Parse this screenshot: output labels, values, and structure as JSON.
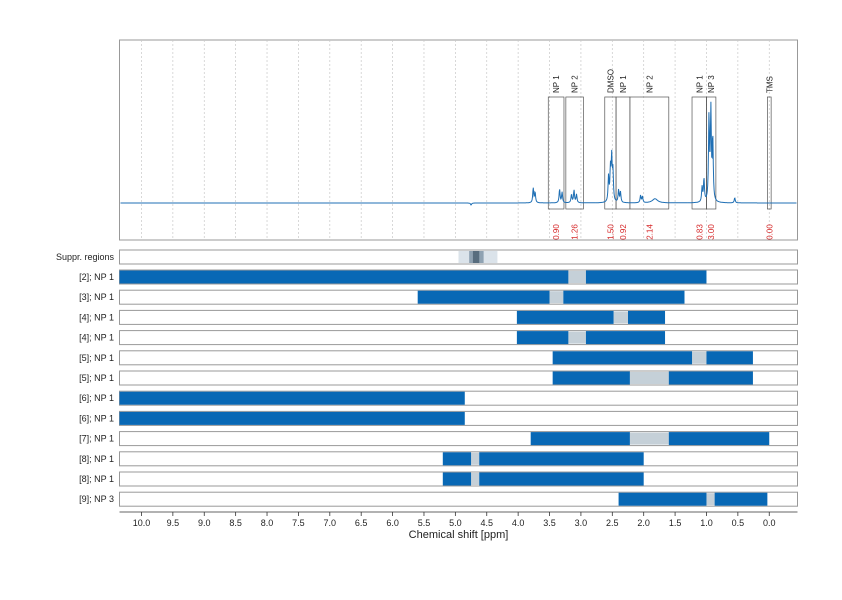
{
  "chart_data": {
    "type": "nmr_spectrum_with_region_bars",
    "xlabel": "Chemical shift [ppm]",
    "x_axis": {
      "range_ppm": [
        10.35,
        -0.45
      ],
      "reversed": true,
      "ticks": [
        "10.0",
        "9.5",
        "9.0",
        "8.5",
        "8.0",
        "7.5",
        "7.0",
        "6.5",
        "6.0",
        "5.5",
        "5.0",
        "4.5",
        "4.0",
        "3.5",
        "3.0",
        "2.5",
        "2.0",
        "1.5",
        "1.0",
        "0.5",
        "0.0"
      ]
    },
    "grid": "vertical dotted",
    "colors": {
      "spectrum": "#1f6fb4",
      "bar": "#0868b5",
      "gap": "#c5d0d8",
      "integral": "#d62728",
      "frame": "#999999"
    },
    "spectrum_peaks": [
      {
        "ppm": 3.76,
        "h": 0.14
      },
      {
        "ppm": 3.73,
        "h": 0.1
      },
      {
        "ppm": 3.34,
        "h": 0.13
      },
      {
        "ppm": 3.3,
        "h": 0.1
      },
      {
        "ppm": 3.15,
        "h": 0.08
      },
      {
        "ppm": 3.11,
        "h": 0.12
      },
      {
        "ppm": 3.07,
        "h": 0.08
      },
      {
        "ppm": 2.56,
        "h": 0.24
      },
      {
        "ppm": 2.53,
        "h": 0.3
      },
      {
        "ppm": 2.51,
        "h": 0.4
      },
      {
        "ppm": 2.49,
        "h": 0.28
      },
      {
        "ppm": 2.4,
        "h": 0.12
      },
      {
        "ppm": 2.37,
        "h": 0.1
      },
      {
        "ppm": 2.05,
        "h": 0.07
      },
      {
        "ppm": 2.02,
        "h": 0.06
      },
      {
        "ppm": 1.82,
        "h": 0.04,
        "w": 0.05
      },
      {
        "ppm": 1.07,
        "h": 0.14
      },
      {
        "ppm": 1.04,
        "h": 0.22
      },
      {
        "ppm": 0.96,
        "h": 0.8
      },
      {
        "ppm": 0.93,
        "h": 0.85
      },
      {
        "ppm": 0.9,
        "h": 0.6
      },
      {
        "ppm": 0.55,
        "h": 0.05
      },
      {
        "ppm": 4.75,
        "h": -0.02
      }
    ],
    "integration_regions": [
      {
        "label": "NP 1",
        "integral": "0.90",
        "from": 3.52,
        "to": 3.27
      },
      {
        "label": "NP 2",
        "integral": "1.26",
        "from": 3.24,
        "to": 2.96
      },
      {
        "label": "DMSO",
        "integral": "1.50",
        "from": 2.62,
        "to": 2.44
      },
      {
        "label": "NP 1",
        "integral": "0.92",
        "from": 2.44,
        "to": 2.22
      },
      {
        "label": "NP 2",
        "integral": "2.14",
        "from": 2.22,
        "to": 1.6
      },
      {
        "label": "NP 1",
        "integral": "0.83",
        "from": 1.23,
        "to": 1.0
      },
      {
        "label": "NP 3",
        "integral": "3.00",
        "from": 1.0,
        "to": 0.85
      },
      {
        "label": "TMS",
        "integral": "0.00",
        "from": 0.03,
        "to": -0.03
      }
    ],
    "suppressed_regions": {
      "label": "Suppr. regions",
      "light": [
        4.95,
        4.33
      ],
      "mid": [
        4.78,
        4.55
      ],
      "dark": [
        4.72,
        4.62
      ]
    },
    "rows": [
      {
        "label": "[2]; NP 1",
        "segments": [
          [
            10.35,
            3.2
          ],
          [
            2.92,
            1.0
          ]
        ],
        "gaps": [
          [
            3.2,
            2.92
          ]
        ]
      },
      {
        "label": "[3]; NP 1",
        "segments": [
          [
            5.6,
            3.5
          ],
          [
            3.28,
            1.35
          ]
        ],
        "gaps": [
          [
            3.5,
            3.28
          ]
        ]
      },
      {
        "label": "[4]; NP 1",
        "segments": [
          [
            4.02,
            2.48
          ],
          [
            2.25,
            1.66
          ]
        ],
        "gaps": [
          [
            2.48,
            2.25
          ]
        ]
      },
      {
        "label": "[4]; NP 1",
        "segments": [
          [
            4.02,
            3.2
          ],
          [
            2.92,
            1.66
          ]
        ],
        "gaps": [
          [
            3.2,
            2.92
          ]
        ]
      },
      {
        "label": "[5]; NP 1",
        "segments": [
          [
            3.45,
            1.23
          ],
          [
            1.0,
            0.26
          ]
        ],
        "gaps": [
          [
            1.23,
            1.0
          ]
        ]
      },
      {
        "label": "[5]; NP 1",
        "segments": [
          [
            3.45,
            2.22
          ],
          [
            1.6,
            0.26
          ]
        ],
        "gaps": [
          [
            2.22,
            1.6
          ]
        ]
      },
      {
        "label": "[6]; NP 1",
        "segments": [
          [
            10.35,
            4.85
          ]
        ],
        "gaps": []
      },
      {
        "label": "[6]; NP 1",
        "segments": [
          [
            10.35,
            4.85
          ]
        ],
        "gaps": []
      },
      {
        "label": "[7]; NP 1",
        "segments": [
          [
            3.8,
            2.22
          ],
          [
            1.6,
            0.0
          ]
        ],
        "gaps": [
          [
            2.22,
            1.6
          ]
        ]
      },
      {
        "label": "[8]; NP 1",
        "segments": [
          [
            5.2,
            4.75
          ],
          [
            4.62,
            2.0
          ]
        ],
        "gaps": [
          [
            4.75,
            4.62
          ]
        ]
      },
      {
        "label": "[8]; NP 1",
        "segments": [
          [
            5.2,
            4.75
          ],
          [
            4.62,
            2.0
          ]
        ],
        "gaps": [
          [
            4.75,
            4.62
          ]
        ]
      },
      {
        "label": "[9]; NP 3",
        "segments": [
          [
            2.4,
            1.0
          ],
          [
            0.87,
            0.03
          ]
        ],
        "gaps": [
          [
            1.0,
            0.87
          ]
        ]
      }
    ]
  }
}
